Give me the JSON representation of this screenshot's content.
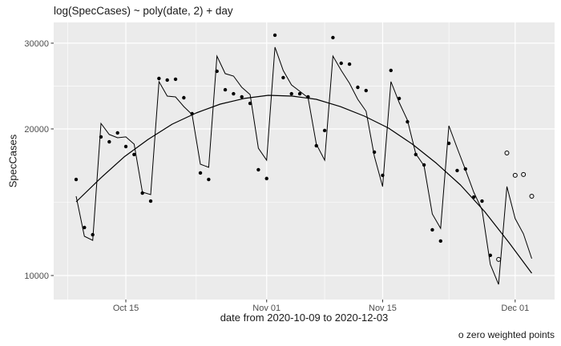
{
  "title": "log(SpecCases) ~ poly(date, 2) + day",
  "caption": "o zero weighted points",
  "chart_data": {
    "type": "scatter",
    "subtype": "scatter with daily model fit line and quadratic trend curve, log10 y scale",
    "start_date": "2020-10-09",
    "end_date": "2020-12-03",
    "n_days": 56,
    "xlabel": "date from 2020-10-09 to 2020-12-03",
    "ylabel": "SpecCases",
    "x_axis": {
      "ticks": [
        {
          "label": "Oct 15",
          "day": 6
        },
        {
          "label": "Nov 01",
          "day": 23
        },
        {
          "label": "Nov 15",
          "day": 37
        },
        {
          "label": "Dec 01",
          "day": 53
        }
      ],
      "minor_days": [
        -1,
        14.5,
        30,
        45
      ]
    },
    "y_axis": {
      "scale": "log10",
      "ticks": [
        {
          "label": "10000",
          "value": 10000
        },
        {
          "label": "20000",
          "value": 20000
        },
        {
          "label": "30000",
          "value": 30000
        }
      ],
      "minor_values": [
        14142,
        24495
      ]
    },
    "series": [
      {
        "name": "observed-points",
        "style": "point-solid",
        "start_day": 0,
        "values": [
          15750,
          12550,
          12130,
          19260,
          18820,
          19630,
          18400,
          17720,
          14770,
          14220,
          25390,
          25200,
          25300,
          23180,
          21490,
          16240,
          15750,
          26270,
          24070,
          23620,
          23270,
          22570,
          16490,
          15820,
          31150,
          25490,
          23620,
          23620,
          23270,
          18470,
          19850,
          30800,
          27280,
          27170,
          24350,
          23980,
          17920,
          16060,
          26370,
          23100,
          20690,
          17720,
          16870,
          12410,
          11770,
          18680,
          16430,
          16550,
          14490,
          14220,
          11000
        ]
      },
      {
        "name": "zero-weighted-points",
        "style": "point-open",
        "start_day": 51,
        "values": [
          10790,
          17850,
          16060,
          16120,
          14550
        ]
      },
      {
        "name": "model-fit-by-day",
        "style": "line",
        "start_day": 0,
        "values": [
          14550,
          12040,
          11810,
          20530,
          19480,
          19180,
          19260,
          18610,
          14830,
          14660,
          25010,
          23360,
          23270,
          22230,
          21410,
          16930,
          16680,
          28230,
          25980,
          25680,
          24350,
          23530,
          18260,
          17250,
          29440,
          26370,
          24630,
          23890,
          23180,
          18610,
          17250,
          28230,
          26370,
          24820,
          23010,
          21740,
          17580,
          15230,
          25010,
          22660,
          20850,
          17780,
          16800,
          13380,
          12500,
          20300,
          18260,
          16490,
          14830,
          13640,
          10540,
          9590,
          15230,
          13090,
          12180,
          10830
        ]
      },
      {
        "name": "quadratic-trend-curve",
        "style": "curve",
        "points": [
          [
            0,
            14170
          ],
          [
            2.9,
            15820
          ],
          [
            5.8,
            17520
          ],
          [
            8.7,
            19040
          ],
          [
            11.6,
            20460
          ],
          [
            14.5,
            21570
          ],
          [
            17.4,
            22490
          ],
          [
            20.3,
            23100
          ],
          [
            23.2,
            23450
          ],
          [
            26.1,
            23360
          ],
          [
            29,
            23010
          ],
          [
            31.9,
            22230
          ],
          [
            34.8,
            21250
          ],
          [
            37.7,
            20080
          ],
          [
            40.6,
            18610
          ],
          [
            43.5,
            17000
          ],
          [
            46.4,
            15340
          ],
          [
            49.3,
            13540
          ],
          [
            52.2,
            11720
          ],
          [
            55,
            10110
          ]
        ]
      }
    ],
    "colors": {
      "panel_background": "#EBEBEB",
      "gridline": "#FFFFFF",
      "tick_label": "#4D4D4D",
      "tick_mark": "#333333",
      "geometry": "#000000"
    },
    "legend_position": "none",
    "grid": "on"
  }
}
